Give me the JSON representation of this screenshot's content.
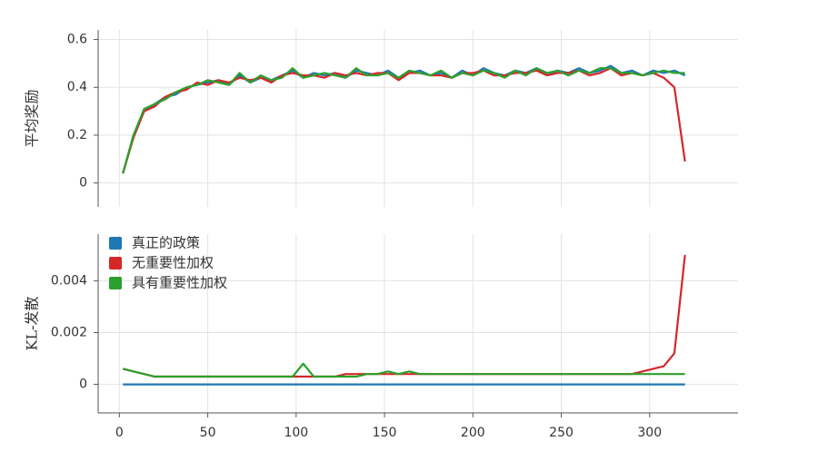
{
  "chart_data": [
    {
      "type": "line",
      "ylabel": "平均奖励",
      "x": [
        2,
        8,
        14,
        20,
        26,
        32,
        38,
        44,
        50,
        56,
        62,
        68,
        74,
        80,
        86,
        92,
        98,
        104,
        110,
        116,
        122,
        128,
        134,
        140,
        146,
        152,
        158,
        164,
        170,
        176,
        182,
        188,
        194,
        200,
        206,
        212,
        218,
        224,
        230,
        236,
        242,
        248,
        254,
        260,
        266,
        272,
        278,
        284,
        290,
        296,
        302,
        308,
        314,
        320
      ],
      "xlim": [
        -12,
        350
      ],
      "ylim": [
        -0.1,
        0.64
      ],
      "yticks": [
        0,
        0.2,
        0.4,
        0.6
      ],
      "grid": true,
      "series": [
        {
          "color": "#1f77b4",
          "values": [
            0.04,
            0.2,
            0.3,
            0.33,
            0.36,
            0.37,
            0.4,
            0.41,
            0.42,
            0.43,
            0.41,
            0.45,
            0.42,
            0.44,
            0.43,
            0.45,
            0.47,
            0.44,
            0.46,
            0.45,
            0.46,
            0.44,
            0.47,
            0.46,
            0.45,
            0.47,
            0.44,
            0.46,
            0.47,
            0.45,
            0.46,
            0.44,
            0.47,
            0.45,
            0.48,
            0.46,
            0.45,
            0.47,
            0.46,
            0.48,
            0.45,
            0.47,
            0.46,
            0.48,
            0.46,
            0.47,
            0.49,
            0.46,
            0.47,
            0.45,
            0.47,
            0.46,
            0.47,
            0.45
          ]
        },
        {
          "color": "#d62728",
          "values": [
            0.04,
            0.19,
            0.3,
            0.32,
            0.36,
            0.38,
            0.39,
            0.42,
            0.41,
            0.43,
            0.42,
            0.44,
            0.43,
            0.44,
            0.42,
            0.45,
            0.46,
            0.45,
            0.45,
            0.44,
            0.46,
            0.45,
            0.46,
            0.45,
            0.46,
            0.46,
            0.43,
            0.46,
            0.46,
            0.45,
            0.45,
            0.44,
            0.46,
            0.46,
            0.47,
            0.45,
            0.45,
            0.46,
            0.46,
            0.47,
            0.45,
            0.46,
            0.46,
            0.47,
            0.45,
            0.46,
            0.48,
            0.45,
            0.46,
            0.45,
            0.46,
            0.44,
            0.4,
            0.09
          ]
        },
        {
          "color": "#2ca02c",
          "values": [
            0.04,
            0.2,
            0.31,
            0.33,
            0.35,
            0.38,
            0.4,
            0.41,
            0.43,
            0.42,
            0.41,
            0.46,
            0.42,
            0.45,
            0.43,
            0.44,
            0.48,
            0.44,
            0.45,
            0.46,
            0.45,
            0.44,
            0.48,
            0.45,
            0.45,
            0.46,
            0.44,
            0.47,
            0.46,
            0.45,
            0.47,
            0.44,
            0.46,
            0.45,
            0.47,
            0.46,
            0.44,
            0.47,
            0.45,
            0.48,
            0.46,
            0.47,
            0.45,
            0.47,
            0.46,
            0.48,
            0.48,
            0.46,
            0.46,
            0.45,
            0.46,
            0.47,
            0.46,
            0.46
          ]
        }
      ]
    },
    {
      "type": "line",
      "ylabel": "KL-发散",
      "x": [
        2,
        8,
        14,
        20,
        26,
        32,
        38,
        44,
        50,
        56,
        62,
        68,
        74,
        80,
        86,
        92,
        98,
        104,
        110,
        116,
        122,
        128,
        134,
        140,
        146,
        152,
        158,
        164,
        170,
        176,
        182,
        188,
        194,
        200,
        206,
        212,
        218,
        224,
        230,
        236,
        242,
        248,
        254,
        260,
        266,
        272,
        278,
        284,
        290,
        296,
        302,
        308,
        314,
        320
      ],
      "xlim": [
        -12,
        350
      ],
      "ylim": [
        -0.0011,
        0.0058
      ],
      "xticks": [
        0,
        50,
        100,
        150,
        200,
        250,
        300
      ],
      "yticks": [
        0,
        0.002,
        0.004
      ],
      "grid": true,
      "legend": "upper left",
      "series": [
        {
          "name": "真正的政策",
          "color": "#1f77b4",
          "values": [
            0,
            0,
            0,
            0,
            0,
            0,
            0,
            0,
            0,
            0,
            0,
            0,
            0,
            0,
            0,
            0,
            0,
            0,
            0,
            0,
            0,
            0,
            0,
            0,
            0,
            0,
            0,
            0,
            0,
            0,
            0,
            0,
            0,
            0,
            0,
            0,
            0,
            0,
            0,
            0,
            0,
            0,
            0,
            0,
            0,
            0,
            0,
            0,
            0,
            0,
            0,
            0,
            0,
            0
          ]
        },
        {
          "name": "无重要性加权",
          "color": "#d62728",
          "values": [
            0.0006,
            0.0005,
            0.0004,
            0.0003,
            0.0003,
            0.0003,
            0.0003,
            0.0003,
            0.0003,
            0.0003,
            0.0003,
            0.0003,
            0.0003,
            0.0003,
            0.0003,
            0.0003,
            0.0003,
            0.0003,
            0.0003,
            0.0003,
            0.0003,
            0.0004,
            0.0004,
            0.0004,
            0.0004,
            0.0004,
            0.0004,
            0.0004,
            0.0004,
            0.0004,
            0.0004,
            0.0004,
            0.0004,
            0.0004,
            0.0004,
            0.0004,
            0.0004,
            0.0004,
            0.0004,
            0.0004,
            0.0004,
            0.0004,
            0.0004,
            0.0004,
            0.0004,
            0.0004,
            0.0004,
            0.0004,
            0.0004,
            0.0005,
            0.0006,
            0.0007,
            0.0012,
            0.005
          ]
        },
        {
          "name": "具有重要性加权",
          "color": "#2ca02c",
          "values": [
            0.0006,
            0.0005,
            0.0004,
            0.0003,
            0.0003,
            0.0003,
            0.0003,
            0.0003,
            0.0003,
            0.0003,
            0.0003,
            0.0003,
            0.0003,
            0.0003,
            0.0003,
            0.0003,
            0.0003,
            0.0008,
            0.0003,
            0.0003,
            0.0003,
            0.0003,
            0.0003,
            0.0004,
            0.0004,
            0.0005,
            0.0004,
            0.0005,
            0.0004,
            0.0004,
            0.0004,
            0.0004,
            0.0004,
            0.0004,
            0.0004,
            0.0004,
            0.0004,
            0.0004,
            0.0004,
            0.0004,
            0.0004,
            0.0004,
            0.0004,
            0.0004,
            0.0004,
            0.0004,
            0.0004,
            0.0004,
            0.0004,
            0.0004,
            0.0004,
            0.0004,
            0.0004,
            0.0004
          ]
        }
      ]
    }
  ]
}
